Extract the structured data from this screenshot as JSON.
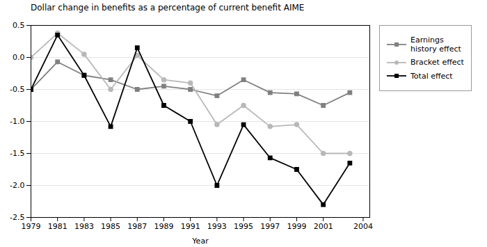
{
  "chart_data": {
    "type": "line",
    "title": "Dollar change in benefits as a percentage of current benefit AIME",
    "x_label": "Year",
    "x": [
      1979,
      1981,
      1983,
      1985,
      1987,
      1989,
      1991,
      1993,
      1995,
      1997,
      1999,
      2001,
      2003
    ],
    "series": [
      {
        "name": "Earnings\nhistory effect",
        "color": "#808080",
        "marker": "square",
        "values": [
          -0.5,
          -0.07,
          -0.28,
          -0.35,
          -0.5,
          -0.45,
          -0.5,
          -0.6,
          -0.35,
          -0.55,
          -0.57,
          -0.75,
          -0.55
        ]
      },
      {
        "name": "Bracket effect",
        "color": "#b8b8b8",
        "marker": "circle",
        "values": [
          0.0,
          0.38,
          0.05,
          -0.5,
          0.03,
          -0.35,
          -0.4,
          -1.05,
          -0.75,
          -1.08,
          -1.05,
          -1.5,
          -1.5
        ]
      },
      {
        "name": "Total effect",
        "color": "#000000",
        "marker": "square",
        "values": [
          -0.5,
          0.35,
          -0.28,
          -1.08,
          0.15,
          -0.75,
          -1.0,
          -2.0,
          -1.05,
          -1.57,
          -1.75,
          -2.3,
          -1.65
        ]
      }
    ],
    "xlim": [
      1979,
      2004.5
    ],
    "xticks": [
      1979,
      1981,
      1983,
      1985,
      1987,
      1989,
      1991,
      1993,
      1995,
      1997,
      1999,
      2001,
      2004
    ],
    "ylim": [
      -2.5,
      0.5
    ],
    "yticks": [
      -2.5,
      {
        "value": -2,
        "label": "-2.0"
      },
      -1.5,
      {
        "value": -1,
        "label": "-1.0"
      },
      -0.5,
      {
        "value": 0,
        "label": "0.0"
      },
      0.5
    ],
    "grid": true,
    "legend": "right"
  }
}
